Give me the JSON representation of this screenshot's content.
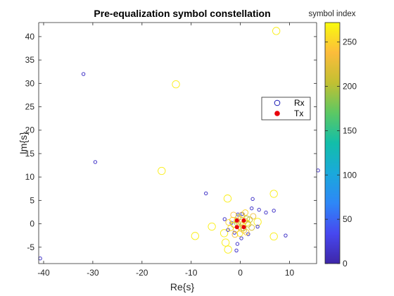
{
  "chart_data": {
    "type": "scatter",
    "title": "Pre-equalization symbol constellation",
    "xlabel": "Re{s}",
    "ylabel": "Im{s}",
    "xlim": [
      -41,
      15.5
    ],
    "ylim": [
      -8.5,
      43
    ],
    "xticks": [
      -40,
      -30,
      -20,
      -10,
      0,
      10
    ],
    "yticks": [
      -5,
      0,
      5,
      10,
      15,
      20,
      25,
      30,
      35,
      40
    ],
    "grid": false,
    "legend": {
      "position": "right",
      "entries": [
        "Rx",
        "Tx"
      ]
    },
    "colorbar": {
      "label": "symbol index",
      "range": [
        0,
        272
      ],
      "ticks": [
        0,
        50,
        100,
        150,
        200,
        250
      ],
      "colormap": "parula"
    },
    "series": [
      {
        "name": "Rx",
        "marker": "open-circle",
        "points": [
          {
            "x": 7.3,
            "y": 41.2,
            "c": 265,
            "s": "big"
          },
          {
            "x": -13.1,
            "y": 29.8,
            "c": 265,
            "s": "big"
          },
          {
            "x": -16.0,
            "y": 11.3,
            "c": 265,
            "s": "big"
          },
          {
            "x": 6.8,
            "y": 6.4,
            "c": 265,
            "s": "big"
          },
          {
            "x": -2.6,
            "y": 5.4,
            "c": 265,
            "s": "big"
          },
          {
            "x": -5.8,
            "y": -0.6,
            "c": 265,
            "s": "big"
          },
          {
            "x": -9.2,
            "y": -2.6,
            "c": 265,
            "s": "big"
          },
          {
            "x": 6.8,
            "y": -2.7,
            "c": 265,
            "s": "big"
          },
          {
            "x": -2.5,
            "y": -5.5,
            "c": 265,
            "s": "big"
          },
          {
            "x": -3.0,
            "y": -4.0,
            "c": 265,
            "s": "big"
          },
          {
            "x": -3.3,
            "y": -2.0,
            "c": 265,
            "s": "big"
          },
          {
            "x": 3.5,
            "y": 0.4,
            "c": 265,
            "s": "big"
          },
          {
            "x": -31.9,
            "y": 32.0,
            "c": 15,
            "s": "small"
          },
          {
            "x": -29.5,
            "y": 13.2,
            "c": 15,
            "s": "small"
          },
          {
            "x": 15.8,
            "y": 11.4,
            "c": 15,
            "s": "small"
          },
          {
            "x": -7.0,
            "y": 6.5,
            "c": 15,
            "s": "small"
          },
          {
            "x": 2.5,
            "y": 5.3,
            "c": 15,
            "s": "small"
          },
          {
            "x": 2.3,
            "y": 3.3,
            "c": 15,
            "s": "small"
          },
          {
            "x": 3.8,
            "y": 3.0,
            "c": 15,
            "s": "small"
          },
          {
            "x": 5.2,
            "y": 2.4,
            "c": 15,
            "s": "small"
          },
          {
            "x": 6.8,
            "y": 2.8,
            "c": 15,
            "s": "small"
          },
          {
            "x": -40.7,
            "y": -7.4,
            "c": 15,
            "s": "small"
          },
          {
            "x": 9.2,
            "y": -2.5,
            "c": 15,
            "s": "small"
          },
          {
            "x": -0.8,
            "y": -5.7,
            "c": 15,
            "s": "small"
          },
          {
            "x": -0.6,
            "y": -4.3,
            "c": 15,
            "s": "small"
          },
          {
            "x": -2.5,
            "y": -1.3,
            "c": 15,
            "s": "small"
          },
          {
            "x": 3.5,
            "y": -0.6,
            "c": 15,
            "s": "small"
          },
          {
            "x": -1.8,
            "y": 0.2,
            "c": 15,
            "s": "small"
          },
          {
            "x": 1.6,
            "y": -2.2,
            "c": 15,
            "s": "small"
          },
          {
            "x": -0.5,
            "y": 2.0,
            "c": 15,
            "s": "small"
          },
          {
            "x": 0.4,
            "y": 2.1,
            "c": 15,
            "s": "small"
          },
          {
            "x": -3.2,
            "y": 1.0,
            "c": 15,
            "s": "small"
          },
          {
            "x": -1.2,
            "y": -1.9,
            "c": 15,
            "s": "small"
          },
          {
            "x": 0.2,
            "y": -3.1,
            "c": 15,
            "s": "small"
          },
          {
            "x": -0.4,
            "y": 1.4,
            "c": 190,
            "s": "mid"
          },
          {
            "x": 1.3,
            "y": 1.1,
            "c": 200,
            "s": "mid"
          },
          {
            "x": -1.3,
            "y": -0.2,
            "c": 210,
            "s": "mid"
          },
          {
            "x": 1.6,
            "y": -0.1,
            "c": 220,
            "s": "mid"
          },
          {
            "x": 0.7,
            "y": -1.4,
            "c": 230,
            "s": "mid"
          },
          {
            "x": -0.9,
            "y": -1.2,
            "c": 240,
            "s": "mid"
          },
          {
            "x": 0.1,
            "y": 0.3,
            "c": 250,
            "s": "mid"
          },
          {
            "x": 0.9,
            "y": 0.6,
            "c": 245,
            "s": "mid"
          },
          {
            "x": -0.2,
            "y": -0.6,
            "c": 235,
            "s": "mid"
          },
          {
            "x": 0.5,
            "y": -0.3,
            "c": 225,
            "s": "mid"
          },
          {
            "x": -0.7,
            "y": 0.7,
            "c": 215,
            "s": "mid"
          },
          {
            "x": 1.9,
            "y": 0.9,
            "c": 205,
            "s": "mid"
          },
          {
            "x": -1.6,
            "y": 0.8,
            "c": 255,
            "s": "mid"
          },
          {
            "x": 1.2,
            "y": -1.8,
            "c": 245,
            "s": "mid"
          },
          {
            "x": -1.1,
            "y": -2.3,
            "c": 235,
            "s": "mid"
          },
          {
            "x": 0.3,
            "y": 1.9,
            "c": 225,
            "s": "mid"
          },
          {
            "x": 2.3,
            "y": -0.8,
            "c": 215,
            "s": "mid"
          },
          {
            "x": -2.0,
            "y": -0.9,
            "c": 255,
            "s": "mid"
          },
          {
            "x": -0.1,
            "y": -2.1,
            "c": 260,
            "s": "mid"
          },
          {
            "x": 1.0,
            "y": 2.4,
            "c": 250,
            "s": "mid"
          },
          {
            "x": -1.4,
            "y": 1.9,
            "c": 240,
            "s": "mid"
          },
          {
            "x": 2.6,
            "y": 1.6,
            "c": 230,
            "s": "mid"
          },
          {
            "x": 0.6,
            "y": -0.9,
            "c": 200,
            "s": "mid"
          },
          {
            "x": -0.6,
            "y": 0.1,
            "c": 190,
            "s": "mid"
          },
          {
            "x": 1.4,
            "y": 0.2,
            "c": 260,
            "s": "mid"
          },
          {
            "x": -2.4,
            "y": 0.3,
            "c": 250,
            "s": "mid"
          },
          {
            "x": 0.0,
            "y": 1.0,
            "c": 240,
            "s": "mid"
          },
          {
            "x": 0.2,
            "y": -1.0,
            "c": 230,
            "s": "mid"
          }
        ]
      },
      {
        "name": "Tx",
        "marker": "filled-dot",
        "color": "#e8000b",
        "points": [
          {
            "x": -0.7,
            "y": 0.7
          },
          {
            "x": 0.7,
            "y": 0.7
          },
          {
            "x": -0.7,
            "y": -0.7
          },
          {
            "x": 0.7,
            "y": -0.7
          }
        ]
      }
    ]
  }
}
